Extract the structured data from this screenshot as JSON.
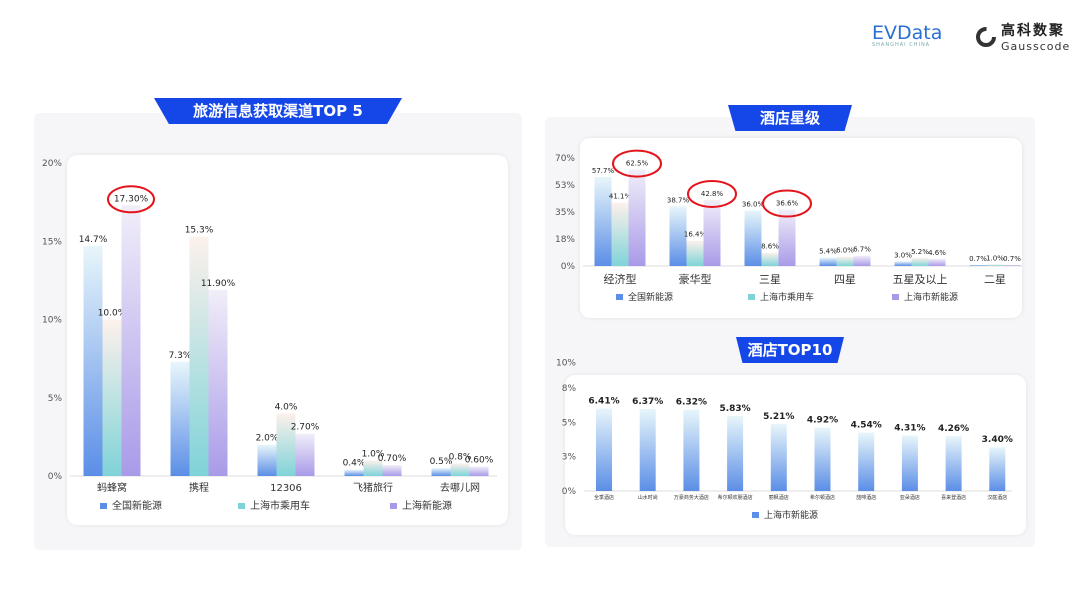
{
  "logos": {
    "evdata": "EVData",
    "evdata_sub": "SHANGHAI CHINA",
    "gauss_cn": "高科数聚",
    "gauss_en": "Gausscode"
  },
  "colors": {
    "blue": "#5b8ee6",
    "teal": "#7fd3d8",
    "purple": "#a99ae8",
    "banner": "#1446e8",
    "highlight": "#e3141b"
  },
  "chart_data": [
    {
      "type": "bar",
      "title": "旅游信息获取渠道TOP 5",
      "categories": [
        "蚂蜂窝",
        "携程",
        "12306",
        "飞猪旅行",
        "去哪儿网"
      ],
      "series": [
        {
          "name": "全国新能源",
          "values": [
            14.7,
            7.3,
            2.0,
            0.4,
            0.5
          ],
          "labels": [
            "14.7%",
            "7.3%",
            "2.0%",
            "0.4%",
            "0.5%"
          ]
        },
        {
          "name": "上海市乘用车",
          "values": [
            10.0,
            15.3,
            4.0,
            1.0,
            0.8
          ],
          "labels": [
            "10.0%",
            "15.3%",
            "4.0%",
            "1.0%",
            "0.8%"
          ]
        },
        {
          "name": "上海新能源",
          "values": [
            17.3,
            11.9,
            2.7,
            0.7,
            0.6
          ],
          "labels": [
            "17.30%",
            "11.90%",
            "2.70%",
            "0.70%",
            "0.60%"
          ]
        }
      ],
      "yticks": [
        "0%",
        "5%",
        "10%",
        "15%",
        "20%"
      ],
      "ylim": [
        0,
        20
      ],
      "highlighted": [
        "蚂蜂窝:上海新能源"
      ],
      "legend": "bottom"
    },
    {
      "type": "bar",
      "title": "酒店星级",
      "categories": [
        "经济型",
        "豪华型",
        "三星",
        "四星",
        "五星及以上",
        "二星"
      ],
      "series": [
        {
          "name": "全国新能源",
          "values": [
            57.7,
            38.7,
            36.0,
            5.4,
            3.0,
            0.7
          ],
          "labels": [
            "57.7%",
            "38.7%",
            "36.0%",
            "5.4%",
            "3.0%",
            "0.7%"
          ]
        },
        {
          "name": "上海市乘用车",
          "values": [
            41.1,
            16.4,
            8.6,
            6.0,
            5.2,
            1.0
          ],
          "labels": [
            "41.1%",
            "16.4%",
            "8.6%",
            "6.0%",
            "5.2%",
            "1.0%"
          ]
        },
        {
          "name": "上海市新能源",
          "values": [
            62.5,
            42.8,
            36.6,
            6.7,
            4.6,
            0.7
          ],
          "labels": [
            "62.5%",
            "42.8%",
            "36.6%",
            "6.7%",
            "4.6%",
            "0.7%"
          ]
        }
      ],
      "yticks": [
        "0%",
        "18%",
        "35%",
        "53%",
        "70%"
      ],
      "ylim": [
        0,
        70
      ],
      "highlighted": [
        "经济型:上海市新能源",
        "豪华型:上海市新能源",
        "三星:上海市新能源"
      ],
      "legend": "bottom"
    },
    {
      "type": "bar",
      "title": "酒店TOP10",
      "categories": [
        "全季酒店",
        "山水时尚",
        "万豪商务大酒店",
        "希尔顿欢朋酒店",
        "丽枫酒店",
        "希尔顿酒店",
        "喆啡酒店",
        "亚朵酒店",
        "喜来登酒店",
        "汉庭酒店"
      ],
      "series": [
        {
          "name": "上海市新能源",
          "values": [
            6.41,
            6.37,
            6.32,
            5.83,
            5.21,
            4.92,
            4.54,
            4.31,
            4.26,
            3.4
          ],
          "labels": [
            "6.41%",
            "6.37%",
            "6.32%",
            "5.83%",
            "5.21%",
            "4.92%",
            "4.54%",
            "4.31%",
            "4.26%",
            "3.40%"
          ]
        }
      ],
      "yticks": [
        "0%",
        "3%",
        "5%",
        "8%",
        "10%"
      ],
      "ylim": [
        0,
        8
      ],
      "legend": "bottom"
    }
  ]
}
